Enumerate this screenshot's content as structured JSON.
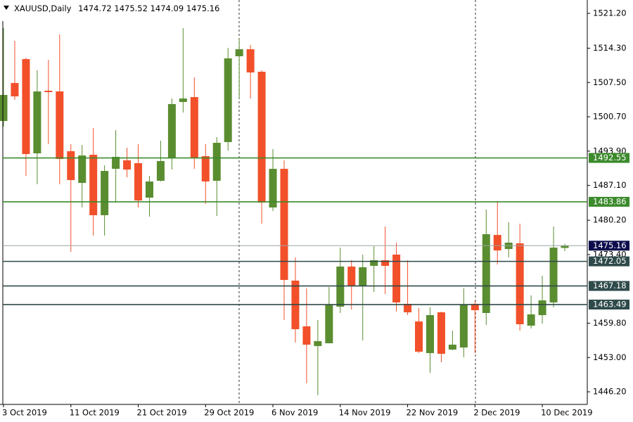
{
  "chart_data": {
    "type": "candlestick",
    "symbol": "XAUUSD,Daily",
    "categories": [
      "3 Oct 2019",
      null,
      null,
      null,
      null,
      null,
      "11 Oct 2019",
      null,
      null,
      null,
      null,
      null,
      "21 Oct 2019",
      null,
      null,
      null,
      null,
      null,
      "29 Oct 2019",
      null,
      null,
      null,
      null,
      null,
      "6 Nov 2019",
      null,
      null,
      null,
      null,
      null,
      "14 Nov 2019",
      null,
      null,
      null,
      null,
      null,
      "22 Nov 2019",
      null,
      null,
      null,
      null,
      null,
      "2 Dec 2019",
      null,
      null,
      null,
      null,
      null,
      "10 Dec 2019",
      null,
      null
    ],
    "open": [
      1499.87,
      1507.4,
      1512.14,
      1493.46,
      1505.87,
      1505.73,
      1493.88,
      1487.6,
      1493.18,
      1481.2,
      1490.4,
      1492.07,
      1491.51,
      1484.68,
      1488.02,
      1492.48,
      1503.64,
      1504.61,
      1492.9,
      1488.02,
      1495.69,
      1512.7,
      1514.09,
      1509.63,
      1482.73,
      1490.39,
      1468.23,
      1459.17,
      1455.26,
      1455.82,
      1463.07,
      1471.02,
      1467.25,
      1471.16,
      1472.27,
      1473.39,
      1463.63,
      1460.14,
      1453.87,
      1461.95,
      1454.57,
      1454.98,
      1463.63,
      1461.82,
      1477.29,
      1474.5,
      1475.62,
      1459.31,
      1461.4,
      1463.91,
      1474.72
    ],
    "high": [
      1518.27,
      1515.76,
      1512.4,
      1509.91,
      1512.0,
      1517.02,
      1495.27,
      1495.13,
      1498.48,
      1491.09,
      1498.06,
      1494.57,
      1495.27,
      1489.0,
      1495.97,
      1504.33,
      1518.27,
      1508.51,
      1495.27,
      1496.67,
      1514.37,
      1516.18,
      1514.93,
      1509.91,
      1494.3,
      1492.07,
      1472.83,
      1466.7,
      1460.42,
      1466.97,
      1474.78,
      1472.27,
      1473.39,
      1475.06,
      1478.96,
      1475.76,
      1472.27,
      1462.79,
      1462.93,
      1462.09,
      1458.33,
      1466.7,
      1464.18,
      1482.31,
      1483.98,
      1479.8,
      1479.52,
      1465.3,
      1469.2,
      1478.96,
      1475.52
    ],
    "low": [
      1498.76,
      1504.05,
      1489.0,
      1487.33,
      1495.27,
      1487.33,
      1473.94,
      1482.73,
      1477.15,
      1477.15,
      1483.7,
      1488.72,
      1482.73,
      1480.91,
      1487.88,
      1490.25,
      1501.54,
      1490.39,
      1483.42,
      1481.05,
      1494.02,
      1504.33,
      1504.33,
      1479.52,
      1482.03,
      1460.42,
      1455.96,
      1447.88,
      1445.51,
      1455.82,
      1461.82,
      1462.51,
      1456.38,
      1466.0,
      1465.58,
      1462.09,
      1461.4,
      1453.87,
      1449.97,
      1452.06,
      1454.43,
      1453.03,
      1453.87,
      1459.45,
      1471.43,
      1472.83,
      1458.33,
      1458.75,
      1459.72,
      1462.93,
      1474.09
    ],
    "close": [
      1505.03,
      1504.75,
      1493.32,
      1505.73,
      1505.59,
      1492.34,
      1488.16,
      1493.04,
      1481.2,
      1489.97,
      1492.76,
      1490.25,
      1484.12,
      1487.88,
      1491.93,
      1503.22,
      1504.33,
      1492.48,
      1487.88,
      1495.55,
      1512.28,
      1514.09,
      1509.49,
      1483.7,
      1490.39,
      1468.37,
      1458.61,
      1455.54,
      1456.24,
      1463.49,
      1471.02,
      1467.11,
      1470.88,
      1472.27,
      1471.16,
      1463.91,
      1461.95,
      1454.15,
      1461.4,
      1453.73,
      1455.54,
      1463.49,
      1462.37,
      1477.43,
      1474.22,
      1475.76,
      1459.59,
      1461.54,
      1464.32,
      1474.78,
      1475.16
    ],
    "up_color": "#5a8d30",
    "down_color": "#f2502a",
    "ylim": [
      1443.7,
      1523.85
    ],
    "yticks": [
      {
        "value": 1521.2,
        "label": "1521.20"
      },
      {
        "value": 1514.3,
        "label": "1514.30"
      },
      {
        "value": 1507.5,
        "label": "1507.50"
      },
      {
        "value": 1500.7,
        "label": "1500.70"
      },
      {
        "value": 1493.9,
        "label": "1493.90"
      },
      {
        "value": 1487.1,
        "label": "1487.10"
      },
      {
        "value": 1480.2,
        "label": "1480.20"
      },
      {
        "value": 1473.4,
        "label": "1473.40"
      },
      {
        "value": 1459.8,
        "label": "1459.80"
      },
      {
        "value": 1453.0,
        "label": "1453.00"
      },
      {
        "value": 1446.2,
        "label": "1446.20"
      }
    ],
    "levels": [
      {
        "value": 1492.55,
        "color": "#3b8a2b"
      },
      {
        "value": 1483.86,
        "color": "#3b8a2b"
      },
      {
        "value": 1472.05,
        "color": "#2f4a4a"
      },
      {
        "value": 1467.18,
        "color": "#2f4a4a"
      },
      {
        "value": 1463.49,
        "color": "#2f4a4a"
      }
    ],
    "bid_line_color": "#9aa4a4",
    "bid_label_color": "#0d0d4d"
  }
}
